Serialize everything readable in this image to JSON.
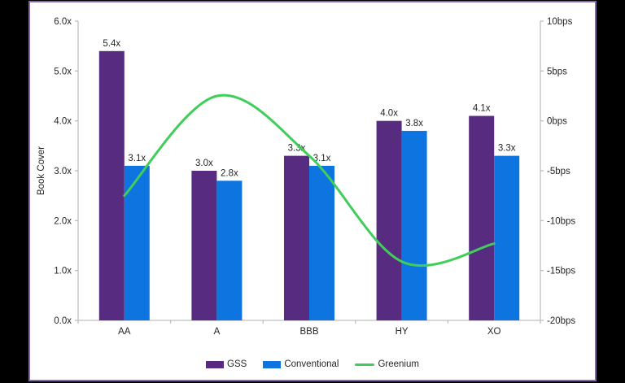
{
  "frame": {
    "background_color": "#000000",
    "panel_background": "#FFFFFF",
    "panel_border_color": "#8668A8"
  },
  "colors": {
    "gss_purple": "#562B80",
    "conventional_blue": "#0E74E0",
    "greenium_green": "#41CD5A",
    "axis_line": "#BFBFBF",
    "text": "#262626"
  },
  "chart_data": {
    "type": "combo-bar-line",
    "categories": [
      "AA",
      "A",
      "BBB",
      "HY",
      "XO"
    ],
    "bar_series": [
      {
        "name": "GSS",
        "color": "#562B80",
        "axis": "left",
        "values": [
          5.4,
          3.0,
          3.3,
          4.0,
          4.1
        ],
        "data_labels": [
          "5.4x",
          "3.0x",
          "3.3x",
          "4.0x",
          "4.1x"
        ]
      },
      {
        "name": "Conventional",
        "color": "#0E74E0",
        "axis": "left",
        "values": [
          3.1,
          2.8,
          3.1,
          3.8,
          3.3
        ],
        "data_labels": [
          "3.1x",
          "2.8x",
          "3.1x",
          "3.8x",
          "3.3x"
        ]
      }
    ],
    "line_series": {
      "name": "Greenium",
      "color": "#41CD5A",
      "axis": "right",
      "smooth": true,
      "values": [
        -7.5,
        2.5,
        -3.5,
        -14.1,
        -12.3
      ]
    },
    "left_axis": {
      "title": "Book Cover",
      "min": 0,
      "max": 6,
      "step": 1,
      "ticks": [
        {
          "value": 6,
          "label": "6.0x"
        },
        {
          "value": 5,
          "label": "5.0x"
        },
        {
          "value": 4,
          "label": "4.0x"
        },
        {
          "value": 3,
          "label": "3.0x"
        },
        {
          "value": 2,
          "label": "2.0x"
        },
        {
          "value": 1,
          "label": "1.0x"
        },
        {
          "value": 0,
          "label": "0.0x"
        }
      ]
    },
    "right_axis": {
      "title": "",
      "min": -20,
      "max": 10,
      "step": 5,
      "ticks": [
        {
          "value": 10,
          "label": "10bps"
        },
        {
          "value": 5,
          "label": "5bps"
        },
        {
          "value": 0,
          "label": "0bps"
        },
        {
          "value": -5,
          "label": "-5bps"
        },
        {
          "value": -10,
          "label": "-10bps"
        },
        {
          "value": -15,
          "label": "-15bps"
        },
        {
          "value": -20,
          "label": "-20bps"
        }
      ]
    },
    "grid": false,
    "legend_position": "bottom"
  },
  "legend": {
    "items": [
      {
        "label": "GSS",
        "swatch": "bar",
        "color": "#562B80"
      },
      {
        "label": "Conventional",
        "swatch": "bar",
        "color": "#0E74E0"
      },
      {
        "label": "Greenium",
        "swatch": "line",
        "color": "#41CD5A"
      }
    ]
  }
}
